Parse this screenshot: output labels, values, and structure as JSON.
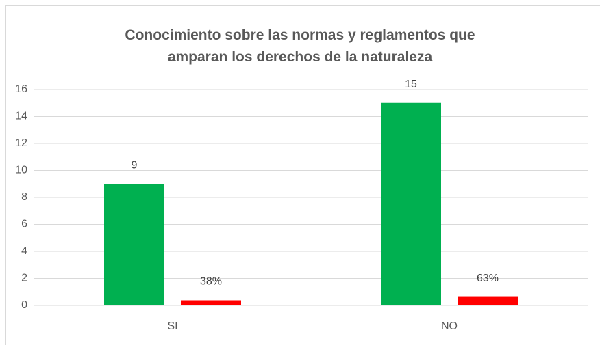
{
  "chart_data": {
    "type": "bar",
    "title": "Conocimiento sobre las normas y reglamentos que amparan los derechos de la naturaleza",
    "categories": [
      "SI",
      "NO"
    ],
    "series": [
      {
        "color": "#00b050",
        "values": [
          9,
          15
        ],
        "value_labels": [
          "9",
          "15"
        ]
      },
      {
        "color": "#ff0000",
        "values": [
          0.38,
          0.63
        ],
        "value_labels": [
          "38%",
          "63%"
        ]
      }
    ],
    "ylim": [
      0,
      16
    ],
    "yticks": [
      0,
      2,
      4,
      6,
      8,
      10,
      12,
      14,
      16
    ],
    "grid": true
  }
}
